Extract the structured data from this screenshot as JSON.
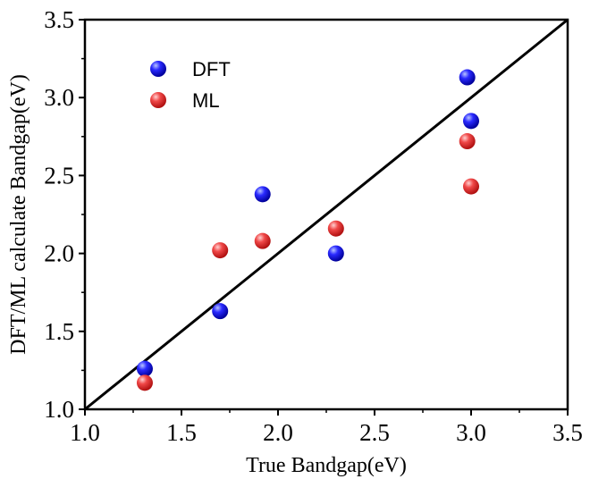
{
  "chart_data": {
    "type": "scatter",
    "xlabel": "True Bandgap(eV)",
    "ylabel": "DFT/ML calculate Bandgap(eV)",
    "xlim": [
      1.0,
      3.5
    ],
    "ylim": [
      1.0,
      3.5
    ],
    "xticks": [
      "1.0",
      "1.5",
      "2.0",
      "2.5",
      "3.0",
      "3.5"
    ],
    "yticks": [
      "1.0",
      "1.5",
      "2.0",
      "2.5",
      "3.0",
      "3.5"
    ],
    "grid": false,
    "legend_position": "top-left",
    "reference_line": {
      "type": "y=x",
      "color": "#000000"
    },
    "series": [
      {
        "name": "DFT",
        "color": "#1a1aff",
        "points": [
          {
            "x": 1.31,
            "y": 1.26
          },
          {
            "x": 1.7,
            "y": 1.63
          },
          {
            "x": 1.92,
            "y": 2.38
          },
          {
            "x": 2.3,
            "y": 2.0
          },
          {
            "x": 2.98,
            "y": 3.13
          },
          {
            "x": 3.0,
            "y": 2.85
          }
        ]
      },
      {
        "name": "ML",
        "color": "#ef3b3b",
        "points": [
          {
            "x": 1.31,
            "y": 1.17
          },
          {
            "x": 1.7,
            "y": 2.02
          },
          {
            "x": 1.92,
            "y": 2.08
          },
          {
            "x": 2.3,
            "y": 2.16
          },
          {
            "x": 2.98,
            "y": 2.72
          },
          {
            "x": 3.0,
            "y": 2.43
          }
        ]
      }
    ]
  }
}
